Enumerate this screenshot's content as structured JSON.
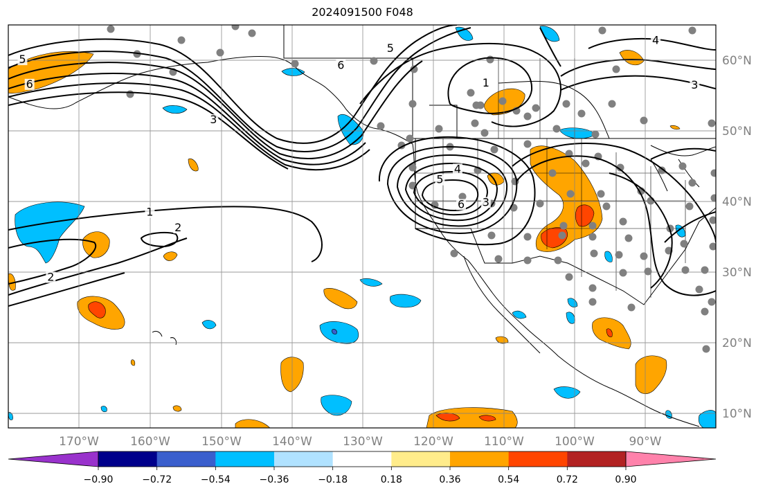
{
  "title": "2024091500 F048",
  "map": {
    "lon_range": [
      -180,
      -80
    ],
    "lat_range": [
      8,
      65
    ],
    "lon_ticks": [
      "170°W",
      "160°W",
      "150°W",
      "140°W",
      "130°W",
      "120°W",
      "110°W",
      "100°W",
      "90°W"
    ],
    "lat_ticks": [
      "60°N",
      "50°N",
      "40°N",
      "30°N",
      "20°N",
      "10°N"
    ],
    "grid": true,
    "contour_color": "#000000",
    "contour_labels": [
      {
        "text": "5",
        "lon": -178,
        "lat": 59.8
      },
      {
        "text": "6",
        "lon": -177,
        "lat": 56.3
      },
      {
        "text": "3",
        "lon": -151,
        "lat": 51.3
      },
      {
        "text": "5",
        "lon": -126,
        "lat": 61.4
      },
      {
        "text": "6",
        "lon": -133,
        "lat": 59.0
      },
      {
        "text": "1",
        "lon": -112.5,
        "lat": 56.5
      },
      {
        "text": "3",
        "lon": -83,
        "lat": 56.2
      },
      {
        "text": "4",
        "lon": -88.5,
        "lat": 62.5
      },
      {
        "text": "1",
        "lon": -160,
        "lat": 38.2
      },
      {
        "text": "2",
        "lon": -156,
        "lat": 36.0
      },
      {
        "text": "2",
        "lon": -174,
        "lat": 29.0
      },
      {
        "text": "4",
        "lon": -116.5,
        "lat": 44.3
      },
      {
        "text": "5",
        "lon": -119,
        "lat": 42.8
      },
      {
        "text": "6",
        "lon": -116,
        "lat": 39.3
      },
      {
        "text": "3",
        "lon": -112.5,
        "lat": 39.6
      }
    ]
  },
  "colorbar": {
    "levels": [
      "−0.90",
      "−0.72",
      "−0.54",
      "−0.36",
      "−0.18",
      "0.18",
      "0.36",
      "0.54",
      "0.72",
      "0.90"
    ],
    "colors": [
      "#9932cc",
      "#00008b",
      "#3a5fcd",
      "#00bfff",
      "#b0e2ff",
      "#ffffff",
      "#ffec8b",
      "#ffa500",
      "#ff4500",
      "#b22222",
      "#ff82ab"
    ]
  }
}
